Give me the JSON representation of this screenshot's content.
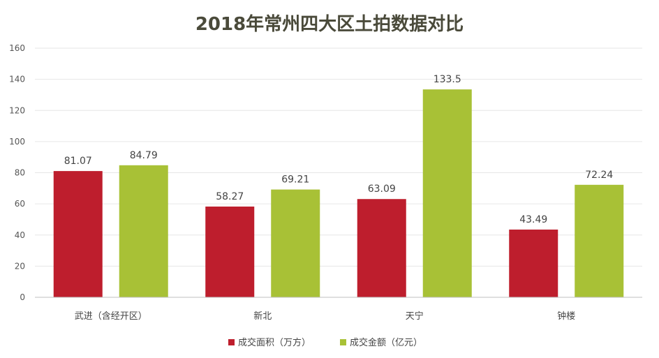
{
  "chart_data": {
    "type": "bar",
    "title": "2018年常州四大区土拍数据对比",
    "categories": [
      "武进（含经开区）",
      "新北",
      "天宁",
      "钟楼"
    ],
    "series": [
      {
        "name": "成交面积（万方）",
        "values": [
          81.07,
          58.27,
          63.09,
          43.49
        ],
        "color": "#be1e2d",
        "labels": [
          "81.07",
          "58.27",
          "63.09",
          "43.49"
        ]
      },
      {
        "name": "成交金额（亿元）",
        "values": [
          84.79,
          69.21,
          133.5,
          72.24
        ],
        "color": "#a8c136",
        "labels": [
          "84.79",
          "69.21",
          "133.5",
          "72.24"
        ]
      }
    ],
    "ylim": [
      0,
      160
    ],
    "yticks": [
      0,
      20,
      40,
      60,
      80,
      100,
      120,
      140,
      160
    ],
    "grid": true,
    "legend_position": "bottom"
  }
}
